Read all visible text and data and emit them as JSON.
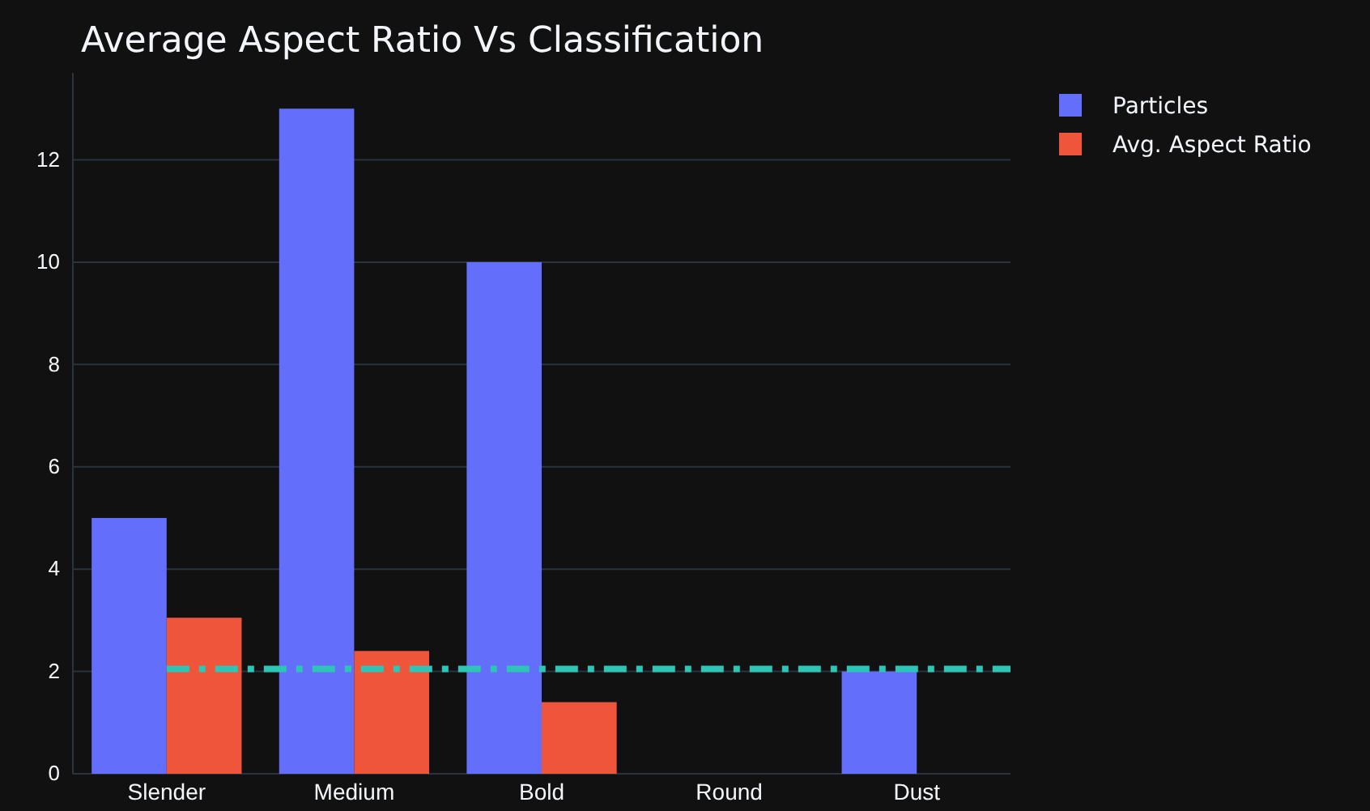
{
  "chart_data": {
    "type": "bar",
    "title": "Average Aspect Ratio Vs Classification",
    "categories": [
      "Slender",
      "Medium",
      "Bold",
      "Round",
      "Dust"
    ],
    "series": [
      {
        "name": "Particles",
        "color": "#636efa",
        "values": [
          5,
          13,
          10,
          0,
          2
        ]
      },
      {
        "name": "Avg. Aspect Ratio",
        "color": "#ef553b",
        "values": [
          3.05,
          2.4,
          1.4,
          0,
          0
        ]
      }
    ],
    "ylim": [
      0,
      13.7
    ],
    "yticks": [
      0,
      2,
      4,
      6,
      8,
      10,
      12
    ],
    "grid": "y",
    "legend": "top right",
    "ref_lines": [
      {
        "axis": "y",
        "value": 2.05,
        "color": "#2ec4b6",
        "line_style": "dashdot"
      }
    ]
  }
}
